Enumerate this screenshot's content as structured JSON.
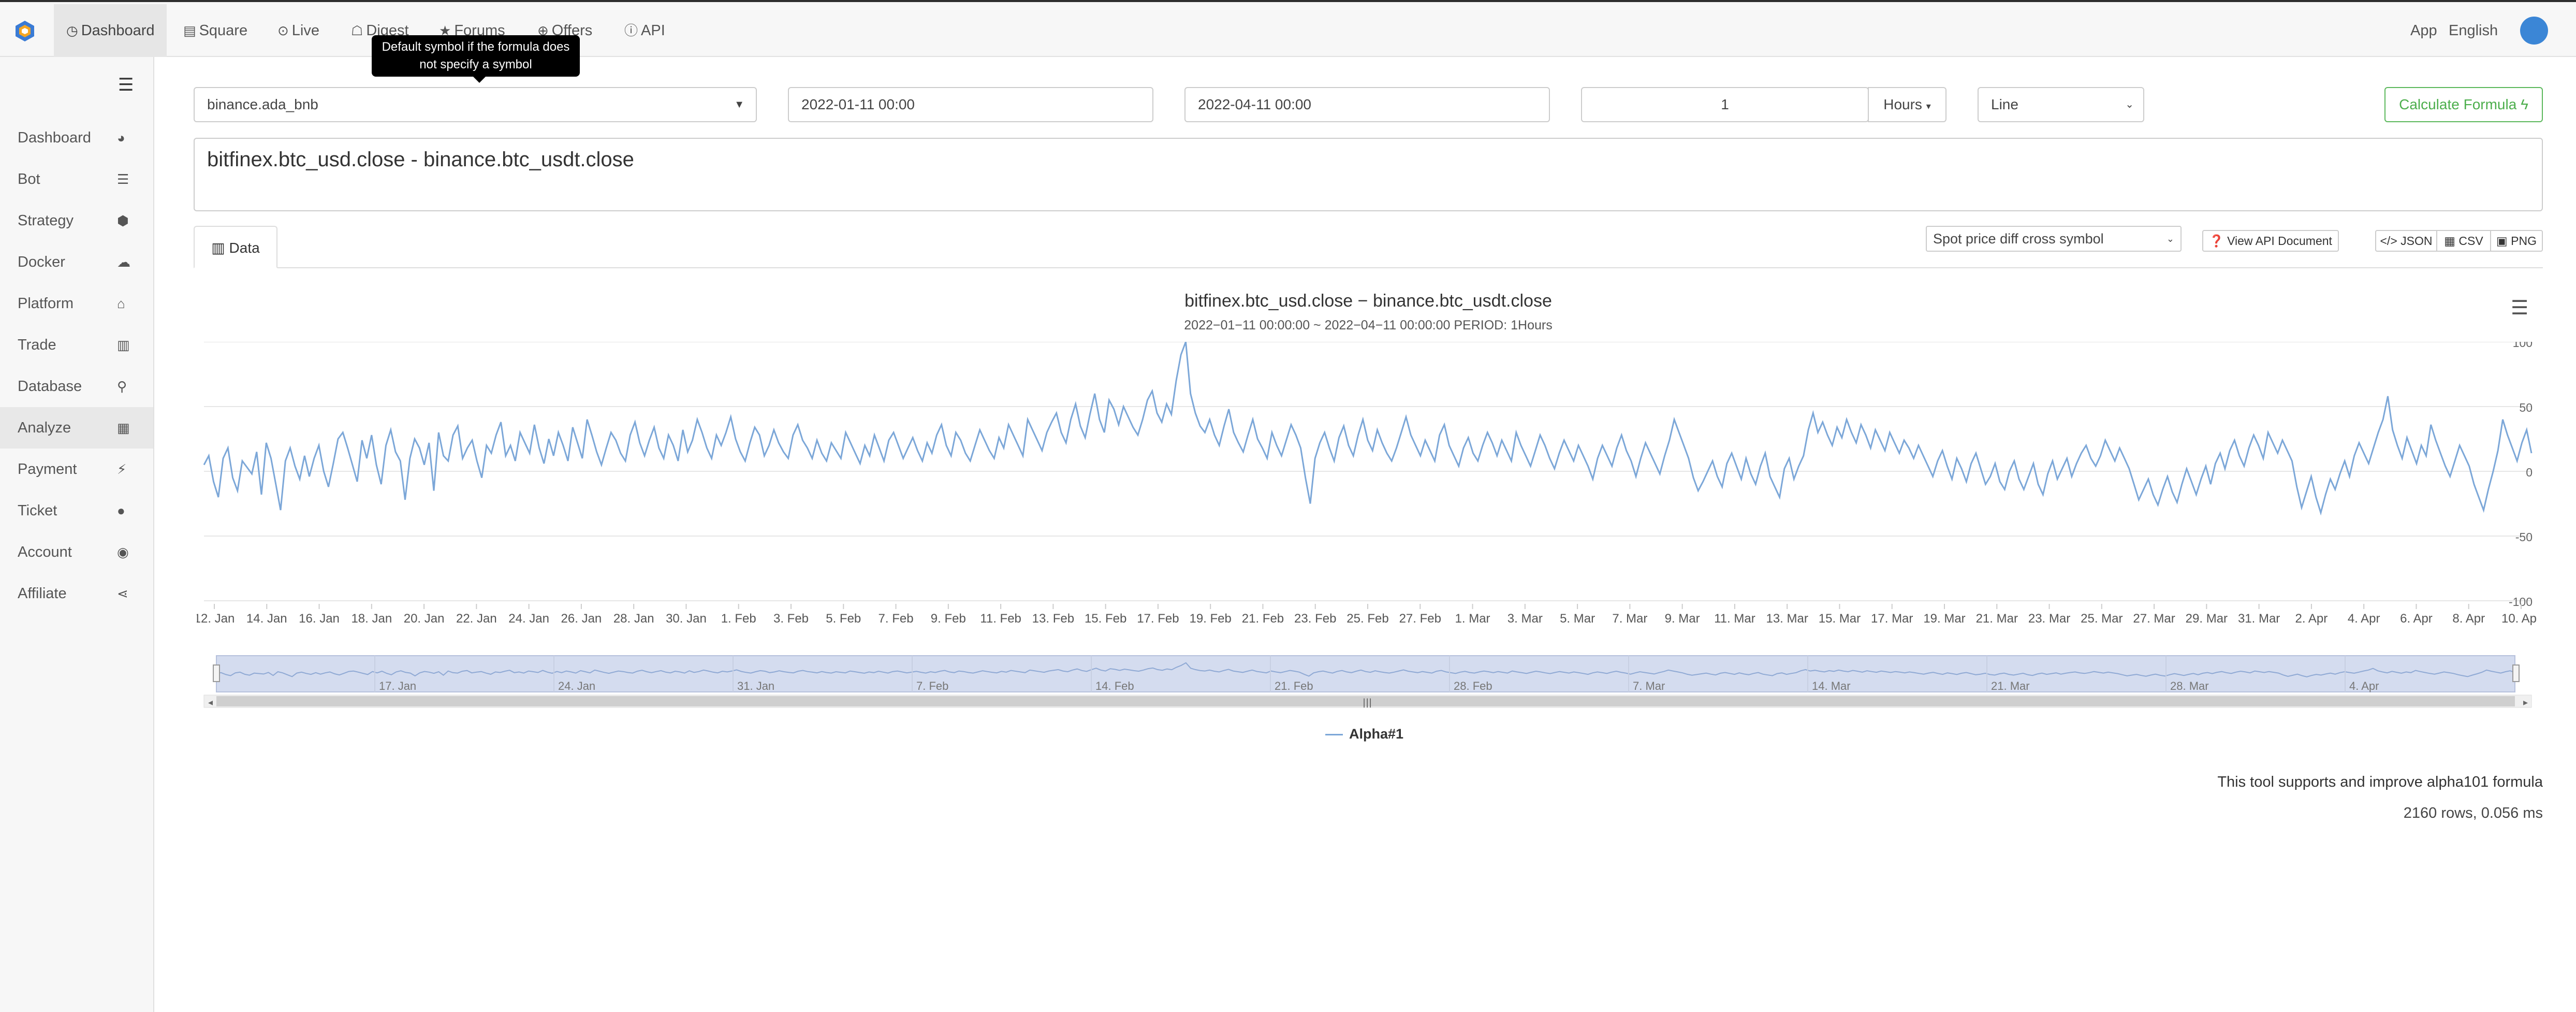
{
  "topnav": {
    "items": [
      {
        "label": "Dashboard",
        "icon": "dashboard-icon",
        "active": true
      },
      {
        "label": "Square",
        "icon": "square-icon"
      },
      {
        "label": "Live",
        "icon": "live-icon"
      },
      {
        "label": "Digest",
        "icon": "digest-icon"
      },
      {
        "label": "Forums",
        "icon": "star-icon"
      },
      {
        "label": "Offers",
        "icon": "offers-icon"
      },
      {
        "label": "API",
        "icon": "info-icon"
      }
    ],
    "app_label": "App",
    "language_label": "English"
  },
  "tooltip": {
    "text": "Default symbol if the formula does not specify a symbol"
  },
  "sidebar": {
    "items": [
      {
        "label": "Dashboard",
        "icon": "gauge-icon"
      },
      {
        "label": "Bot",
        "icon": "list-icon"
      },
      {
        "label": "Strategy",
        "icon": "cube-icon"
      },
      {
        "label": "Docker",
        "icon": "cloud-icon"
      },
      {
        "label": "Platform",
        "icon": "bank-icon"
      },
      {
        "label": "Trade",
        "icon": "bar-chart-icon"
      },
      {
        "label": "Database",
        "icon": "search-icon"
      },
      {
        "label": "Analyze",
        "icon": "calculator-icon",
        "active": true
      },
      {
        "label": "Payment",
        "icon": "plug-icon"
      },
      {
        "label": "Ticket",
        "icon": "chat-icon"
      },
      {
        "label": "Account",
        "icon": "user-circle-icon"
      },
      {
        "label": "Affiliate",
        "icon": "share-icon"
      }
    ]
  },
  "form": {
    "symbol": "binance.ada_bnb",
    "start_date": "2022-01-11 00:00",
    "end_date": "2022-04-11 00:00",
    "period_value": "1",
    "period_unit": "Hours",
    "chart_type": "Line",
    "calculate_label": "Calculate Formula",
    "formula": "bitfinex.btc_usd.close - binance.btc_usdt.close"
  },
  "tabs": {
    "data_label": "Data"
  },
  "toolbar": {
    "template_select": "Spot price diff cross symbol",
    "api_doc_label": "View API Document",
    "json_label": "JSON",
    "csv_label": "CSV",
    "png_label": "PNG"
  },
  "chart_data": {
    "type": "line",
    "title": "bitfinex.btc_usd.close − binance.btc_usdt.close",
    "subtitle": "2022−01−11 00:00:00 ~ 2022−04−11 00:00:00 PERIOD: 1Hours",
    "ylim": [
      -100,
      100
    ],
    "yticks": [
      100,
      50,
      0,
      -50,
      -100
    ],
    "xticks": [
      "12. Jan",
      "14. Jan",
      "16. Jan",
      "18. Jan",
      "20. Jan",
      "22. Jan",
      "24. Jan",
      "26. Jan",
      "28. Jan",
      "30. Jan",
      "1. Feb",
      "3. Feb",
      "5. Feb",
      "7. Feb",
      "9. Feb",
      "11. Feb",
      "13. Feb",
      "15. Feb",
      "17. Feb",
      "19. Feb",
      "21. Feb",
      "23. Feb",
      "25. Feb",
      "27. Feb",
      "1. Mar",
      "3. Mar",
      "5. Mar",
      "7. Mar",
      "9. Mar",
      "11. Mar",
      "13. Mar",
      "15. Mar",
      "17. Mar",
      "19. Mar",
      "21. Mar",
      "23. Mar",
      "25. Mar",
      "27. Mar",
      "29. Mar",
      "31. Mar",
      "2. Apr",
      "4. Apr",
      "6. Apr",
      "8. Apr",
      "10. Apr"
    ],
    "navigator_ticks": [
      "17. Jan",
      "24. Jan",
      "31. Jan",
      "7. Feb",
      "14. Feb",
      "21. Feb",
      "28. Feb",
      "7. Mar",
      "14. Mar",
      "21. Mar",
      "28. Mar",
      "4. Apr"
    ],
    "series": [
      {
        "name": "Alpha#1",
        "color": "#7ca7d8",
        "points_count": 2160,
        "values": [
          5,
          12,
          -8,
          -20,
          10,
          18,
          -5,
          -15,
          8,
          3,
          -2,
          15,
          -18,
          22,
          10,
          -10,
          -30,
          8,
          18,
          4,
          -6,
          12,
          -4,
          10,
          20,
          0,
          -12,
          6,
          25,
          30,
          18,
          5,
          -8,
          24,
          10,
          28,
          5,
          -10,
          20,
          32,
          15,
          8,
          -22,
          10,
          25,
          18,
          5,
          22,
          -15,
          30,
          12,
          8,
          28,
          35,
          10,
          18,
          24,
          8,
          -5,
          20,
          14,
          28,
          38,
          12,
          20,
          8,
          30,
          22,
          14,
          36,
          18,
          6,
          25,
          12,
          30,
          20,
          8,
          34,
          22,
          10,
          40,
          28,
          15,
          5,
          18,
          30,
          24,
          14,
          8,
          28,
          38,
          22,
          12,
          24,
          34,
          18,
          10,
          28,
          20,
          8,
          32,
          15,
          24,
          40,
          30,
          18,
          10,
          28,
          20,
          30,
          42,
          25,
          15,
          8,
          22,
          34,
          28,
          12,
          20,
          32,
          22,
          15,
          10,
          28,
          36,
          24,
          18,
          10,
          24,
          14,
          8,
          22,
          16,
          10,
          30,
          22,
          14,
          6,
          20,
          12,
          28,
          18,
          8,
          24,
          30,
          20,
          10,
          18,
          26,
          16,
          8,
          22,
          14,
          28,
          36,
          20,
          12,
          30,
          24,
          14,
          8,
          20,
          32,
          24,
          16,
          10,
          26,
          18,
          36,
          28,
          20,
          12,
          40,
          32,
          24,
          16,
          30,
          38,
          45,
          30,
          22,
          40,
          52,
          35,
          26,
          44,
          60,
          40,
          30,
          55,
          48,
          36,
          50,
          42,
          34,
          28,
          40,
          55,
          62,
          45,
          38,
          52,
          44,
          70,
          90,
          118,
          60,
          45,
          35,
          30,
          40,
          28,
          20,
          35,
          48,
          30,
          22,
          15,
          28,
          40,
          25,
          18,
          10,
          30,
          20,
          12,
          24,
          36,
          28,
          18,
          -5,
          -25,
          10,
          22,
          30,
          18,
          8,
          26,
          35,
          20,
          12,
          28,
          40,
          24,
          16,
          32,
          22,
          14,
          8,
          18,
          30,
          42,
          28,
          20,
          12,
          24,
          16,
          8,
          28,
          36,
          20,
          12,
          4,
          18,
          26,
          14,
          8,
          20,
          30,
          22,
          12,
          24,
          16,
          8,
          30,
          20,
          12,
          4,
          16,
          28,
          20,
          10,
          2,
          14,
          24,
          16,
          8,
          20,
          12,
          4,
          -6,
          10,
          20,
          12,
          4,
          18,
          28,
          16,
          8,
          -4,
          10,
          22,
          14,
          6,
          -2,
          12,
          24,
          40,
          30,
          20,
          10,
          -5,
          -15,
          -8,
          0,
          8,
          -4,
          -12,
          6,
          14,
          4,
          -6,
          10,
          -2,
          -10,
          4,
          14,
          -4,
          -12,
          -20,
          2,
          10,
          -6,
          4,
          12,
          32,
          45,
          30,
          38,
          28,
          20,
          34,
          26,
          40,
          30,
          22,
          36,
          28,
          18,
          32,
          24,
          16,
          30,
          22,
          14,
          24,
          18,
          10,
          20,
          12,
          4,
          -4,
          8,
          16,
          4,
          -6,
          10,
          2,
          -8,
          6,
          14,
          2,
          -10,
          -4,
          6,
          -8,
          -14,
          0,
          8,
          -6,
          -14,
          -4,
          6,
          -10,
          -18,
          -2,
          8,
          -6,
          2,
          10,
          -4,
          6,
          14,
          20,
          10,
          4,
          12,
          24,
          16,
          8,
          18,
          10,
          2,
          -10,
          -22,
          -14,
          -6,
          -18,
          -26,
          -14,
          -4,
          -16,
          -24,
          -10,
          2,
          -8,
          -18,
          -6,
          4,
          -10,
          6,
          14,
          2,
          16,
          24,
          12,
          4,
          18,
          28,
          20,
          10,
          30,
          22,
          14,
          24,
          16,
          8,
          -12,
          -28,
          -16,
          -4,
          -20,
          -32,
          -18,
          -6,
          -14,
          -2,
          8,
          -4,
          12,
          22,
          14,
          6,
          18,
          30,
          40,
          58,
          32,
          20,
          10,
          26,
          16,
          6,
          20,
          12,
          36,
          24,
          14,
          4,
          -4,
          8,
          20,
          12,
          4,
          -10,
          -20,
          -30,
          -14,
          0,
          16,
          40,
          28,
          18,
          8,
          22,
          32,
          14
        ]
      }
    ]
  },
  "legend": {
    "label": "Alpha#1"
  },
  "footer": {
    "note": "This tool supports and improve alpha101 formula",
    "rows_info": "2160 rows, 0.056 ms"
  }
}
